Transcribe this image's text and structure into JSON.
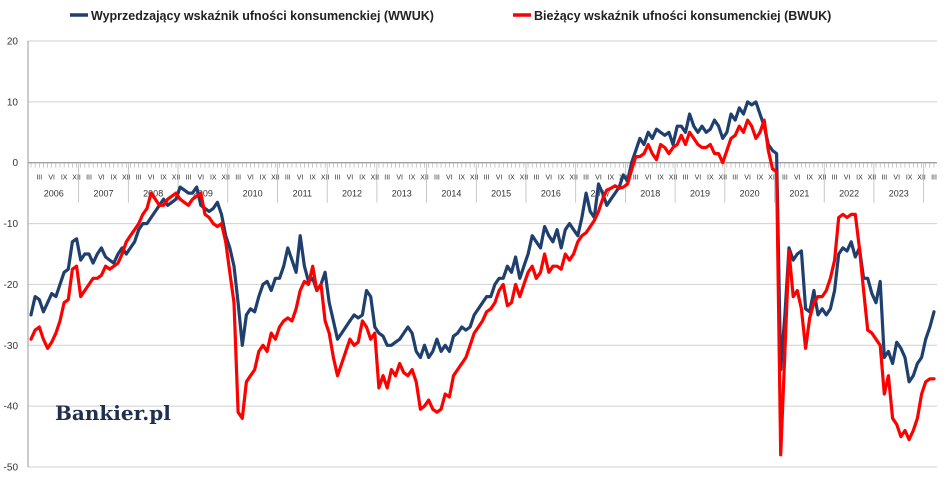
{
  "chart_data": {
    "type": "line",
    "x_start": "2006-01",
    "x_end": "2023-03",
    "ylim": [
      -50,
      20
    ],
    "yticks": [
      20,
      10,
      0,
      -10,
      -20,
      -30,
      -40,
      -50
    ],
    "month_labels": [
      "III",
      "VI",
      "IX",
      "XII"
    ],
    "years": [
      "2006",
      "2007",
      "2008",
      "2009",
      "2010",
      "2011",
      "2012",
      "2013",
      "2014",
      "2015",
      "2016",
      "2017",
      "2018",
      "2019",
      "2020",
      "2021",
      "2022",
      "2023"
    ],
    "legend_position": "top",
    "series": [
      {
        "name": "Wyprzedzający wskaźnik ufności konsumenckiej (WWUK)",
        "color": "#1f3f6e",
        "values": [
          -25,
          -22,
          -22.5,
          -24.5,
          -23,
          -21.5,
          -22,
          -20,
          -18,
          -17.5,
          -13,
          -12.5,
          -16,
          -15,
          -15,
          -16.5,
          -15,
          -14,
          -15.5,
          -16,
          -16.5,
          -15,
          -14,
          -15,
          -14,
          -13,
          -11,
          -10,
          -10,
          -9,
          -8,
          -7,
          -6,
          -7,
          -6.5,
          -6,
          -4,
          -4.5,
          -5,
          -5,
          -4,
          -7,
          -7.5,
          -8,
          -7.5,
          -6.5,
          -8.5,
          -12,
          -14,
          -17,
          -23,
          -30,
          -25,
          -24,
          -24.5,
          -22,
          -20,
          -19.5,
          -21,
          -19,
          -19,
          -17,
          -14,
          -16,
          -18,
          -12,
          -17,
          -19.5,
          -19,
          -21,
          -20,
          -18,
          -23,
          -26,
          -29,
          -28,
          -27,
          -26,
          -25,
          -25.5,
          -25,
          -21,
          -22,
          -27,
          -28,
          -28.5,
          -30,
          -30,
          -29.5,
          -29,
          -28,
          -27,
          -28,
          -31,
          -32,
          -30,
          -32,
          -31,
          -29,
          -31,
          -30,
          -31,
          -28.5,
          -28,
          -27,
          -27.5,
          -27,
          -25,
          -24,
          -23,
          -22,
          -22,
          -20,
          -19,
          -19,
          -17,
          -18,
          -15.5,
          -19,
          -17,
          -15,
          -12,
          -13,
          -14,
          -10.5,
          -12,
          -13,
          -11,
          -14,
          -11,
          -10,
          -11,
          -12,
          -9,
          -5,
          -8,
          -9,
          -3.5,
          -5,
          -7,
          -6,
          -5,
          -4,
          -2,
          -3,
          0,
          2,
          4,
          3,
          5,
          4,
          5.5,
          5,
          4.5,
          5,
          3,
          6,
          6,
          5,
          8,
          6,
          5,
          6,
          5,
          5.5,
          7,
          6,
          4,
          5,
          8,
          7,
          9,
          8,
          10,
          9.5,
          10,
          8,
          6,
          3,
          2,
          1.5,
          -34,
          -25,
          -14,
          -16,
          -15,
          -14.5,
          -24,
          -24.5,
          -21,
          -25,
          -24,
          -25,
          -24,
          -21,
          -15,
          -14,
          -14.5,
          -13,
          -15.5,
          -14,
          -19,
          -19,
          -21.5,
          -23,
          -19.5,
          -32,
          -31,
          -33,
          -29.5,
          -30.5,
          -32,
          -36,
          -35,
          -33,
          -32,
          -29,
          -27,
          -24.5
        ]
      },
      {
        "name": "Bieżący wskaźnik ufności konsumenckiej (BWUK)",
        "color": "#ff0000",
        "values": [
          -29,
          -27.5,
          -27,
          -29,
          -30.5,
          -29.5,
          -28,
          -26,
          -23,
          -22.5,
          -17.5,
          -17,
          -22,
          -21,
          -20,
          -19,
          -19,
          -18.5,
          -17,
          -17.5,
          -17,
          -16.5,
          -15,
          -13,
          -12,
          -11,
          -10,
          -8.5,
          -7.5,
          -5,
          -6,
          -7,
          -7,
          -6,
          -5.5,
          -5,
          -6,
          -6.5,
          -7,
          -6,
          -5.5,
          -5,
          -8.5,
          -9,
          -10,
          -10.5,
          -10,
          -13,
          -18,
          -23,
          -41,
          -42,
          -36,
          -35,
          -34,
          -31,
          -30,
          -31,
          -28,
          -29,
          -27,
          -26,
          -25.5,
          -26,
          -24,
          -21,
          -19.5,
          -20,
          -17,
          -21,
          -20,
          -26,
          -28,
          -32,
          -35,
          -33,
          -31,
          -29,
          -30,
          -29.5,
          -26,
          -27,
          -29,
          -28,
          -37,
          -35,
          -37,
          -34,
          -35,
          -33,
          -34.5,
          -35,
          -34,
          -36,
          -40.5,
          -40,
          -39,
          -40.5,
          -41,
          -40.5,
          -38,
          -38.5,
          -35,
          -34,
          -33,
          -32,
          -30,
          -28,
          -27,
          -26,
          -24.5,
          -24,
          -23,
          -21,
          -20,
          -23.5,
          -23,
          -20,
          -22,
          -20,
          -18,
          -17,
          -19,
          -18,
          -15,
          -18,
          -17,
          -17,
          -17.5,
          -15,
          -16,
          -15,
          -13,
          -12,
          -11.5,
          -10.5,
          -9.5,
          -8,
          -6,
          -4.5,
          -4.2,
          -3.8,
          -4.2,
          -4,
          -3.5,
          -1.2,
          1,
          1,
          1.5,
          3,
          1.5,
          0.5,
          3,
          2.5,
          1.5,
          2.5,
          3,
          4.5,
          3,
          5,
          4,
          3,
          2.5,
          2.5,
          3,
          1.5,
          1.5,
          0,
          2,
          4,
          4.5,
          6,
          5,
          7,
          6,
          4,
          5,
          7,
          2,
          -1,
          -1.5,
          -48,
          -31,
          -14.5,
          -22,
          -21,
          -24,
          -30.5,
          -25.5,
          -23,
          -22,
          -22,
          -21,
          -19,
          -16,
          -9,
          -8.5,
          -9,
          -8.5,
          -8.5,
          -14,
          -21,
          -27.5,
          -28,
          -29,
          -30,
          -38,
          -35,
          -42,
          -43,
          -45,
          -44,
          -45.5,
          -44,
          -42,
          -38,
          -36,
          -35.5,
          -35.5
        ]
      }
    ]
  },
  "branding": {
    "logo_text": "Bankier.pl"
  }
}
